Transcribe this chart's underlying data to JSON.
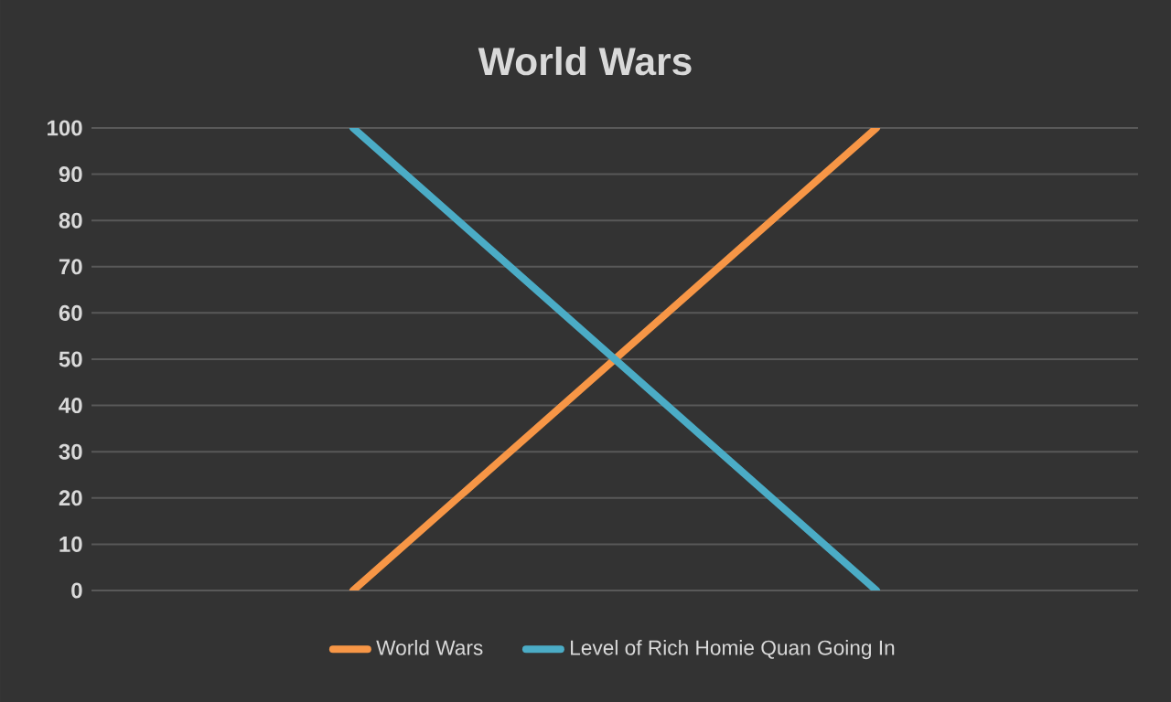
{
  "chart_data": {
    "type": "line",
    "title": "World Wars",
    "categories": [
      null,
      null
    ],
    "series": [
      {
        "name": "World Wars",
        "color": "#f79646",
        "values": [
          0,
          100
        ]
      },
      {
        "name": "Level of Rich Homie Quan Going In",
        "color": "#4bacc6",
        "values": [
          100,
          0
        ]
      }
    ],
    "ylim": [
      0,
      100
    ],
    "yticks": [
      0,
      10,
      20,
      30,
      40,
      50,
      60,
      70,
      80,
      90,
      100
    ],
    "grid": "y",
    "legend": "bottom",
    "tick_labels": "y",
    "marker": "none"
  }
}
